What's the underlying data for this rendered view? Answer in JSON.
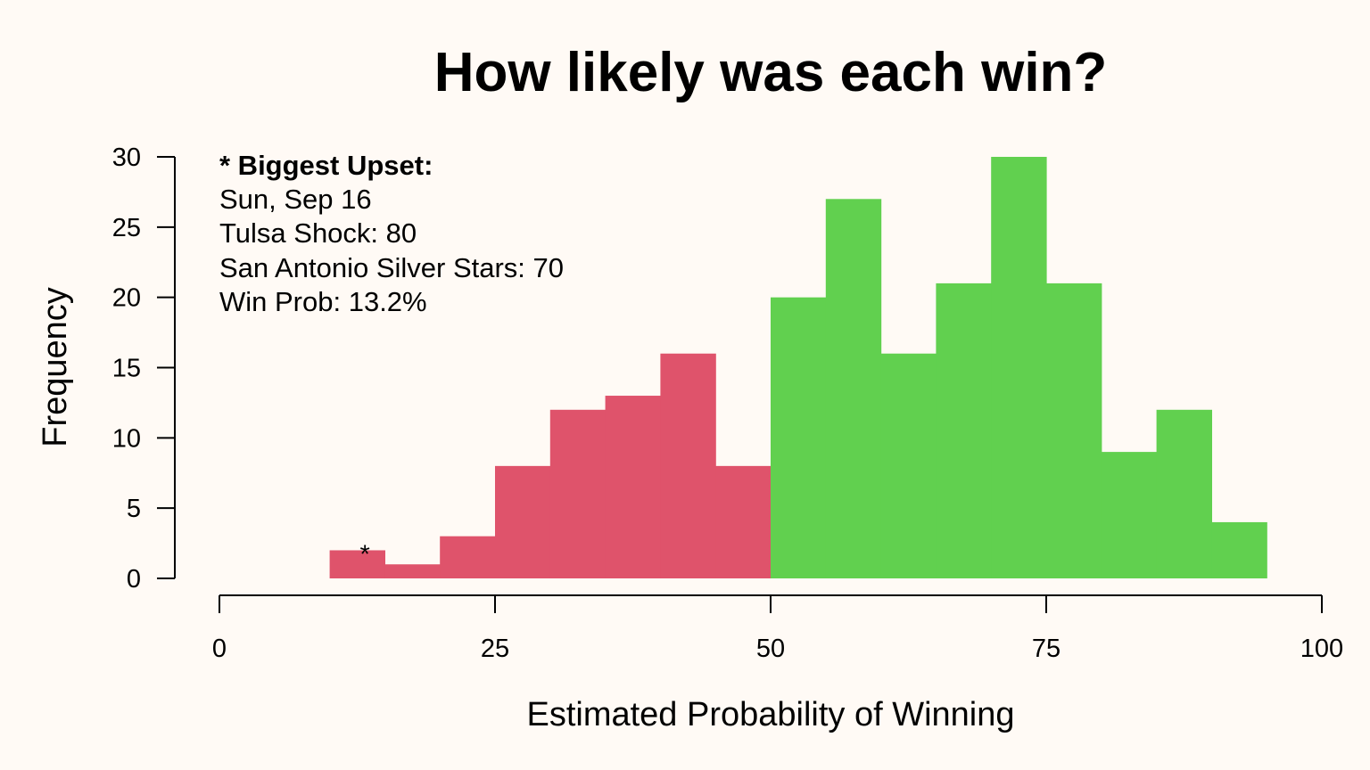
{
  "chart_data": {
    "type": "bar",
    "title": "How likely was each win?",
    "xlabel": "Estimated Probability of Winning",
    "ylabel": "Frequency",
    "xlim": [
      0,
      100
    ],
    "ylim": [
      0,
      30
    ],
    "xticks": [
      0,
      25,
      50,
      75,
      100
    ],
    "yticks": [
      0,
      5,
      10,
      15,
      20,
      25,
      30
    ],
    "bin_width": 5,
    "bins": [
      {
        "start": 10,
        "end": 15,
        "count": 2
      },
      {
        "start": 15,
        "end": 20,
        "count": 1
      },
      {
        "start": 20,
        "end": 25,
        "count": 3
      },
      {
        "start": 25,
        "end": 30,
        "count": 8
      },
      {
        "start": 30,
        "end": 35,
        "count": 12
      },
      {
        "start": 35,
        "end": 40,
        "count": 13
      },
      {
        "start": 40,
        "end": 45,
        "count": 16
      },
      {
        "start": 45,
        "end": 50,
        "count": 8
      },
      {
        "start": 50,
        "end": 55,
        "count": 20
      },
      {
        "start": 55,
        "end": 60,
        "count": 27
      },
      {
        "start": 60,
        "end": 65,
        "count": 16
      },
      {
        "start": 65,
        "end": 70,
        "count": 21
      },
      {
        "start": 70,
        "end": 75,
        "count": 30
      },
      {
        "start": 75,
        "end": 80,
        "count": 21
      },
      {
        "start": 80,
        "end": 85,
        "count": 9
      },
      {
        "start": 85,
        "end": 90,
        "count": 12
      },
      {
        "start": 90,
        "end": 95,
        "count": 4
      }
    ],
    "colors": {
      "below_50": "#df536b",
      "above_50": "#61d04f",
      "axis": "#000000",
      "background": "#fffaf5"
    },
    "marker": {
      "x": 13.2,
      "label": "*"
    },
    "annotation": {
      "heading": "* Biggest Upset:",
      "lines": [
        "Sun, Sep 16",
        "Tulsa Shock: 80",
        "San Antonio Silver Stars: 70",
        "Win Prob: 13.2%"
      ]
    },
    "grid": false,
    "legend": "none"
  }
}
